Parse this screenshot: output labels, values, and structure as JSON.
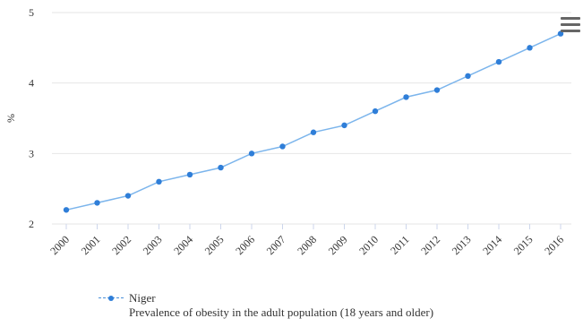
{
  "chart_data": {
    "type": "line",
    "categories": [
      "2000",
      "2001",
      "2002",
      "2003",
      "2004",
      "2005",
      "2006",
      "2007",
      "2008",
      "2009",
      "2010",
      "2011",
      "2012",
      "2013",
      "2014",
      "2015",
      "2016"
    ],
    "series": [
      {
        "name": "Niger",
        "values": [
          2.2,
          2.3,
          2.4,
          2.6,
          2.7,
          2.8,
          3.0,
          3.1,
          3.3,
          3.4,
          3.6,
          3.8,
          3.9,
          4.1,
          4.3,
          4.5,
          4.7
        ]
      }
    ],
    "ylabel": "%",
    "ylim": [
      2,
      5
    ],
    "yticks": [
      "2",
      "3",
      "4",
      "5"
    ],
    "grid": true,
    "legend_subtitle": "Prevalence of obesity in the adult population (18 years and older)",
    "legend_placement": "bottom-left",
    "colors": {
      "line": "#7cb5ec",
      "marker": "#2f7ed8",
      "grid": "#e6e6e6"
    }
  },
  "menu": {
    "icon": "hamburger-menu-icon"
  }
}
